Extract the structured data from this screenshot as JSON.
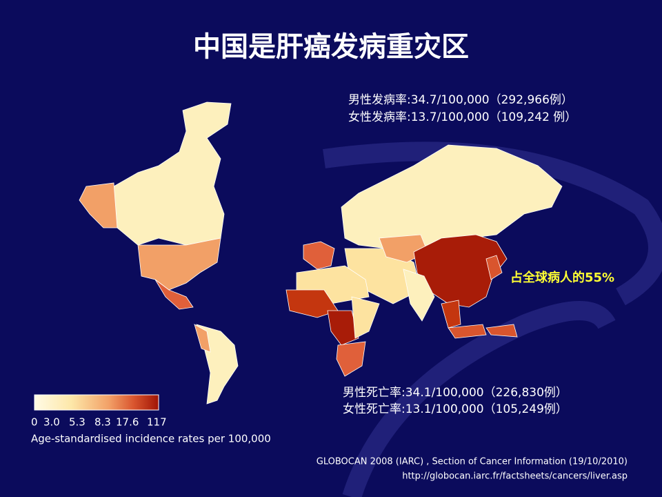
{
  "header": {
    "title": "中国是肝癌发病重灾区"
  },
  "incidence": {
    "male": "男性发病率:34.7/100,000（292,966例）",
    "female": "女性发病率:13.7/100,000（109,242 例）"
  },
  "annotation": "占全球病人的55%",
  "mortality": {
    "male": "男性死亡率:34.1/100,000（226,830例）",
    "female": "女性死亡率:13.1/100,000（105,249例）"
  },
  "legend": {
    "labels": [
      "0",
      "3.0",
      "5.3",
      "8.3",
      "17.6",
      "117"
    ],
    "title": "Age-standardised incidence rates per 100,000"
  },
  "source": {
    "line1": "GLOBOCAN 2008 (IARC) , Section of Cancer Information (19/10/2010)",
    "line2": "http://globocan.iarc.fr/factsheets/cancers/liver.asp"
  }
}
